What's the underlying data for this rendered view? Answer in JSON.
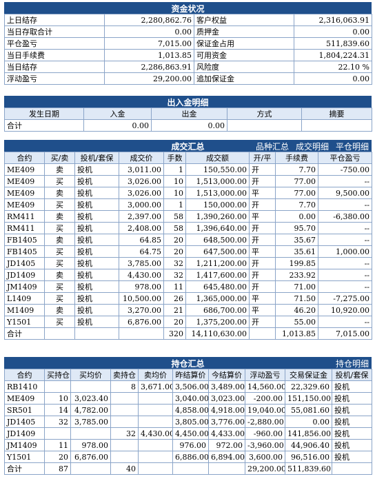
{
  "funds": {
    "title": "资金状况",
    "rows": [
      [
        "上日结存",
        "2,280,862.76",
        "客户权益",
        "2,316,063.91"
      ],
      [
        "当日存取合计",
        "0.00",
        "质押金",
        "0.00"
      ],
      [
        "平仓盈亏",
        "7,015.00",
        "保证金占用",
        "511,839.60"
      ],
      [
        "当日手续费",
        "1,013.85",
        "可用资金",
        "1,804,224.31"
      ],
      [
        "当日结存",
        "2,286,863.91",
        "风险度",
        "22.10 %"
      ],
      [
        "浮动盈亏",
        "29,200.00",
        "追加保证金",
        "0.00"
      ]
    ]
  },
  "inout": {
    "title": "出入金明细",
    "headers": [
      "发生日期",
      "入金",
      "出金",
      "方式",
      "摘要"
    ],
    "total": [
      "合计",
      "0.00",
      "0.00",
      "",
      ""
    ]
  },
  "trades": {
    "title": "成交汇总",
    "links": [
      "品种汇总",
      "成交明细",
      "平仓明细"
    ],
    "headers": [
      "合约",
      "买/卖",
      "投机/套保",
      "成交价",
      "手数",
      "成交额",
      "开/平",
      "手续费",
      "平仓盈亏"
    ],
    "rows": [
      [
        "ME409",
        "卖",
        "投机",
        "3,011.00",
        "1",
        "150,550.00",
        "开",
        "7.70",
        "-750.00"
      ],
      [
        "ME409",
        "买",
        "投机",
        "3,026.00",
        "10",
        "1,513,000.00",
        "开",
        "77.00",
        "--"
      ],
      [
        "ME409",
        "卖",
        "投机",
        "3,026.00",
        "10",
        "1,513,000.00",
        "平",
        "77.00",
        "9,500.00"
      ],
      [
        "ME409",
        "买",
        "投机",
        "3,000.00",
        "1",
        "150,000.00",
        "开",
        "7.70",
        "--"
      ],
      [
        "RM411",
        "卖",
        "投机",
        "2,397.00",
        "58",
        "1,390,260.00",
        "平",
        "0.00",
        "-6,380.00"
      ],
      [
        "RM411",
        "买",
        "投机",
        "2,408.00",
        "58",
        "1,396,640.00",
        "开",
        "95.70",
        "--"
      ],
      [
        "FB1405",
        "卖",
        "投机",
        "64.85",
        "20",
        "648,500.00",
        "开",
        "35.67",
        "--"
      ],
      [
        "FB1405",
        "买",
        "投机",
        "64.75",
        "20",
        "647,500.00",
        "平",
        "35.61",
        "1,000.00"
      ],
      [
        "JD1405",
        "买",
        "投机",
        "3,785.00",
        "32",
        "1,211,200.00",
        "开",
        "199.85",
        "--"
      ],
      [
        "JD1409",
        "卖",
        "投机",
        "4,430.00",
        "32",
        "1,417,600.00",
        "开",
        "233.92",
        "--"
      ],
      [
        "JM1409",
        "买",
        "投机",
        "978.00",
        "11",
        "645,480.00",
        "开",
        "71.00",
        "--"
      ],
      [
        "L1409",
        "买",
        "投机",
        "10,500.00",
        "26",
        "1,365,000.00",
        "平",
        "71.50",
        "-7,275.00"
      ],
      [
        "M1409",
        "卖",
        "投机",
        "3,270.00",
        "21",
        "686,700.00",
        "平",
        "46.20",
        "10,920.00"
      ],
      [
        "Y1501",
        "买",
        "投机",
        "6,876.00",
        "20",
        "1,375,200.00",
        "开",
        "55.00",
        "--"
      ]
    ],
    "total": [
      "合计",
      "",
      "",
      "",
      "320",
      "14,110,630.00",
      "",
      "1,013.85",
      "7,015.00"
    ]
  },
  "positions": {
    "title": "持仓汇总",
    "links": [
      "持仓明细"
    ],
    "headers": [
      "合约",
      "买持仓",
      "买均价",
      "卖持仓",
      "卖均价",
      "昨结算价",
      "今结算价",
      "浮动盈亏",
      "交易保证金",
      "投机/套保"
    ],
    "rows": [
      [
        "RB1410",
        "",
        "",
        "8",
        "3,671.00",
        "3,506.00",
        "3,489.00",
        "14,560.00",
        "22,329.60",
        "投机"
      ],
      [
        "ME409",
        "10",
        "3,023.40",
        "",
        "",
        "3,040.00",
        "3,023.00",
        "-200.00",
        "151,150.00",
        "投机"
      ],
      [
        "SR501",
        "14",
        "4,782.00",
        "",
        "",
        "4,858.00",
        "4,918.00",
        "19,040.00",
        "55,081.60",
        "投机"
      ],
      [
        "JD1405",
        "32",
        "3,785.00",
        "",
        "",
        "3,805.00",
        "3,776.00",
        "-2,880.00",
        "0.00",
        "投机"
      ],
      [
        "JD1409",
        "",
        "",
        "32",
        "4,430.00",
        "4,450.00",
        "4,433.00",
        "-960.00",
        "141,856.00",
        "投机"
      ],
      [
        "JM1409",
        "11",
        "978.00",
        "",
        "",
        "976.00",
        "972.00",
        "-3,960.00",
        "44,906.40",
        "投机"
      ],
      [
        "Y1501",
        "20",
        "6,876.00",
        "",
        "",
        "6,886.00",
        "6,894.00",
        "3,600.00",
        "96,516.00",
        "投机"
      ]
    ],
    "total": [
      "合计",
      "87",
      "",
      "40",
      "",
      "",
      "",
      "29,200.00",
      "511,839.60",
      ""
    ]
  }
}
